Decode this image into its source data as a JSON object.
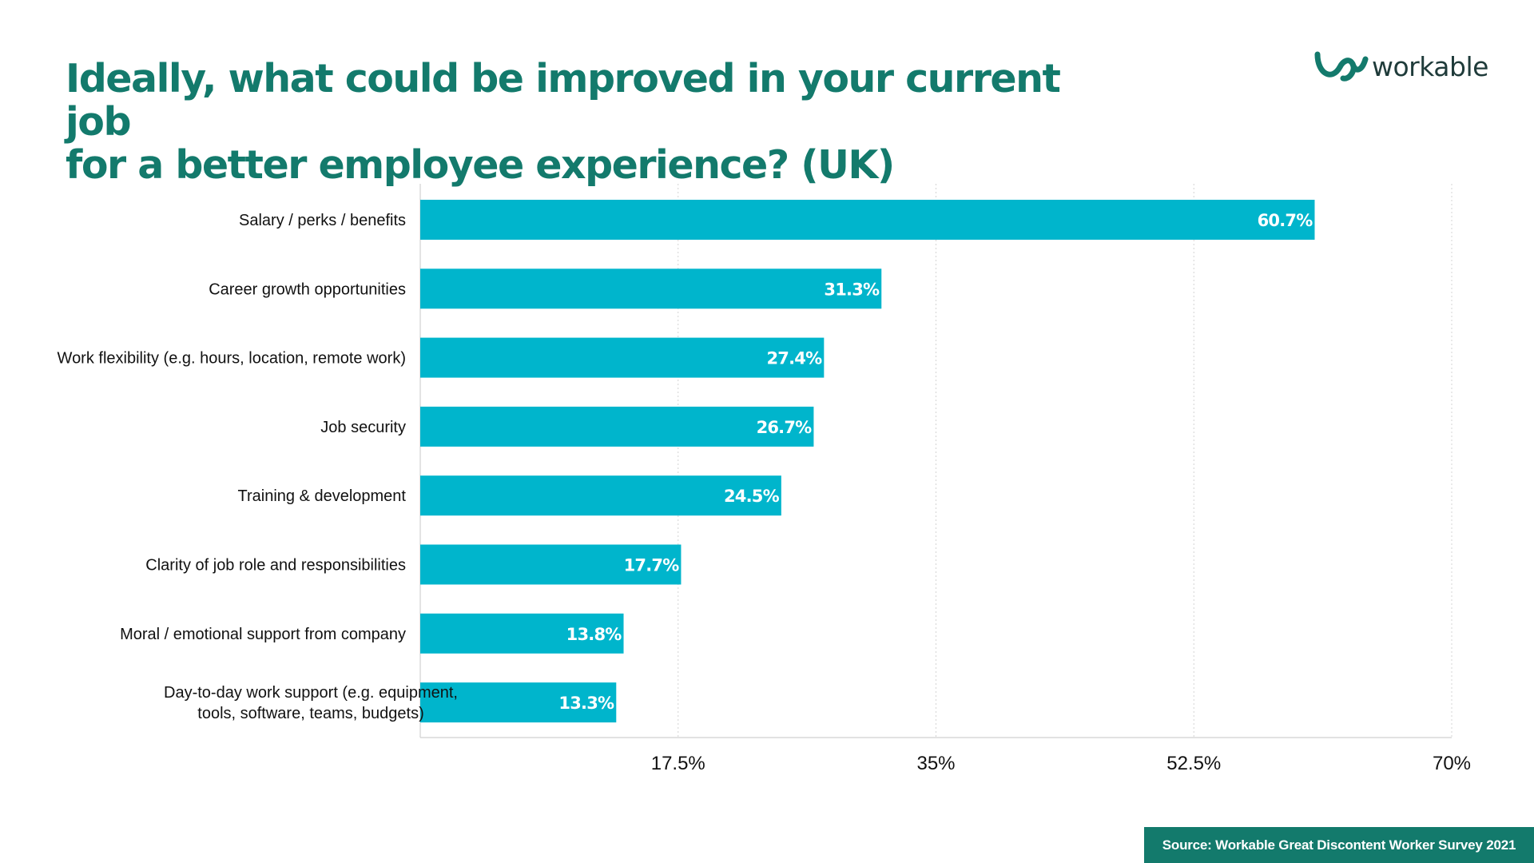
{
  "title_lines": [
    "Ideally, what could be improved in your current job",
    "for a better employee experience? (UK)"
  ],
  "logo": {
    "icon": "workable-w-logo-icon",
    "text": "workable"
  },
  "source": "Source: Workable Great Discontent Worker Survey 2021",
  "colors": {
    "title": "#137a6c",
    "bar": "#00b5cc",
    "bar_label": "#ffffff",
    "source_background": "#137a6c"
  },
  "chart_data": {
    "type": "bar",
    "orientation": "horizontal",
    "categories": [
      [
        "Salary / perks / benefits"
      ],
      [
        "Career growth opportunities"
      ],
      [
        "Work flexibility (e.g. hours, location, remote work)"
      ],
      [
        "Job security"
      ],
      [
        "Training & development"
      ],
      [
        "Clarity of job role and responsibilities"
      ],
      [
        "Moral / emotional support from company"
      ],
      [
        "Day-to-day work support (e.g. equipment,",
        "tools, software, teams, budgets)"
      ]
    ],
    "values": [
      60.7,
      31.3,
      27.4,
      26.7,
      24.5,
      17.7,
      13.8,
      13.3
    ],
    "value_labels": [
      "60.7%",
      "31.3%",
      "27.4%",
      "26.7%",
      "24.5%",
      "17.7%",
      "13.8%",
      "13.3%"
    ],
    "xlim": [
      0,
      70
    ],
    "xticks": [
      17.5,
      35,
      52.5,
      70
    ],
    "xtick_labels": [
      "17.5%",
      "35%",
      "52.5%",
      "70%"
    ],
    "grid": "vertical dotted",
    "legend": "none"
  }
}
